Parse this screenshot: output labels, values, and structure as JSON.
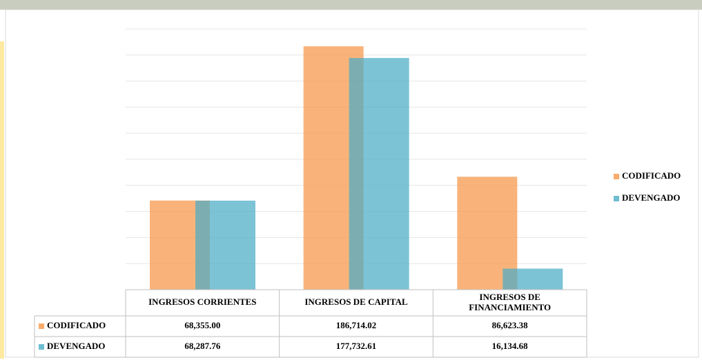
{
  "chart_data": {
    "type": "bar",
    "categories": [
      "INGRESOS CORRIENTES",
      "INGRESOS DE CAPITAL",
      "INGRESOS DE FINANCIAMIENTO"
    ],
    "series": [
      {
        "name": "CODIFICADO",
        "color": "#F79646",
        "values": [
          68355.0,
          186714.02,
          86623.38
        ],
        "value_labels": [
          "68,355.00",
          "186,714.02",
          "86,623.38"
        ]
      },
      {
        "name": "DEVENGADO",
        "color": "#4BACC6",
        "values": [
          68287.76,
          177732.61,
          16134.68
        ],
        "value_labels": [
          "68,287.76",
          "177,732.61",
          "16,134.68"
        ]
      }
    ],
    "ylim": [
      0,
      200000
    ],
    "yticks": [
      0,
      20000,
      40000,
      60000,
      80000,
      100000,
      120000,
      140000,
      160000,
      180000,
      200000
    ],
    "grid": true,
    "legend": "right"
  }
}
